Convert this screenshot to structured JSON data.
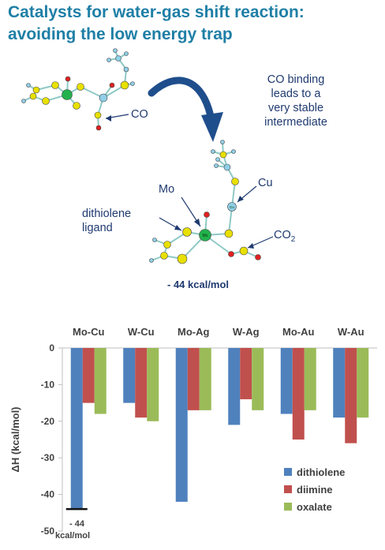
{
  "title_lines": [
    "Catalysts for water-gas shift reaction:",
    "avoiding the low energy trap"
  ],
  "molecule_labels": {
    "co": "CO",
    "note_lines": [
      "CO binding",
      "leads to a",
      "very stable",
      "intermediate"
    ],
    "mo": "Mo",
    "cu": "Cu",
    "dithiolene_lines": [
      "dithiolene",
      "ligand"
    ],
    "co2": "CO",
    "co2_sub": "2",
    "energy": "- 44 kcal/mol"
  },
  "atom_symbols": {
    "mo": "Mo",
    "cu": "Cu"
  },
  "colors": {
    "title": "#1f7fa6",
    "label": "#1f3a70",
    "arrow": "#1f4e8c",
    "dithiolene": "#4f81bd",
    "diimine": "#c0504d",
    "oxalate": "#9bbb59",
    "sulfur": "#e8e000",
    "molybdenum": "#22b14c",
    "oxygen": "#e02020",
    "copper": "#8fd0e8",
    "bond": "#8ec9c5"
  },
  "chart_data": {
    "type": "bar",
    "categories": [
      "Mo-Cu",
      "W-Cu",
      "Mo-Ag",
      "W-Ag",
      "Mo-Au",
      "W-Au"
    ],
    "series": [
      {
        "name": "dithiolene",
        "values": [
          -44,
          -15,
          -42,
          -21,
          -18,
          -19
        ]
      },
      {
        "name": "diimine",
        "values": [
          -15,
          -19,
          -17,
          -14,
          -25,
          -26
        ]
      },
      {
        "name": "oxalate",
        "values": [
          -18,
          -20,
          -17,
          -17,
          -17,
          -19
        ]
      }
    ],
    "ylabel": "ΔH (kcal/mol)",
    "ylim": [
      -50,
      0
    ],
    "yticks": [
      0,
      -10,
      -20,
      -30,
      -40,
      -50
    ],
    "grid": false,
    "legend_position": "bottom-right",
    "categories_position": "top",
    "annotation": {
      "category": "Mo-Cu",
      "value": -44,
      "lines": [
        "- 44",
        "kcal/mol"
      ]
    }
  }
}
